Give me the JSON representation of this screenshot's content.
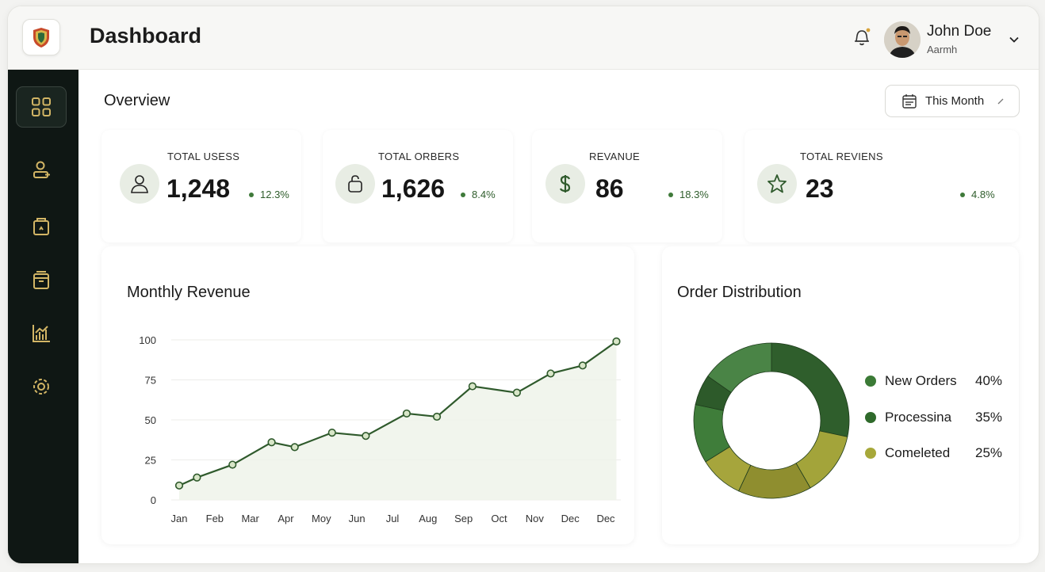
{
  "header": {
    "title": "Dashboard",
    "user_name": "John Doe",
    "user_sub": "Aarmh"
  },
  "sidebar": {
    "items": [
      {
        "icon": "grid-icon",
        "active": true
      },
      {
        "icon": "user-icon",
        "active": false
      },
      {
        "icon": "bag-icon",
        "active": false
      },
      {
        "icon": "archive-icon",
        "active": false
      },
      {
        "icon": "bar-chart-icon",
        "active": false
      },
      {
        "icon": "settings-gear-icon",
        "active": false
      }
    ]
  },
  "overview": {
    "title": "Overview",
    "period_label": "This Month"
  },
  "stats": [
    {
      "label": "TOTAL USESS",
      "value": "1,248",
      "trend": "12.3%",
      "icon": "user-icon"
    },
    {
      "label": "TOTAL ORBERS",
      "value": "1,626",
      "trend": "8.4%",
      "icon": "bag-icon"
    },
    {
      "label": "REVANUE",
      "value": "86",
      "trend": "18.3%",
      "icon": "dollar-icon"
    },
    {
      "label": "TOTAL REVIENS",
      "value": "23",
      "trend": "4.8%",
      "icon": "star-icon"
    }
  ],
  "colors": {
    "accent": "#2f5a2c",
    "sidebar_bg": "#0f1714",
    "sidebar_icon": "#d2b565",
    "new_orders": "#3b7a36",
    "processing": "#2f6a2b",
    "completed": "#a7a83a"
  },
  "chart_data": [
    {
      "type": "line",
      "title": "Monthly Revenue",
      "categories": [
        "Jan",
        "Feb",
        "Mar",
        "Apr",
        "Moy",
        "Jun",
        "Jul",
        "Aug",
        "Sep",
        "Oct",
        "Nov",
        "Dec",
        "Dec"
      ],
      "y_ticks": [
        "100",
        "75",
        "50",
        "25",
        "0"
      ],
      "ylim": [
        0,
        100
      ],
      "x_index_range": [
        0,
        12
      ],
      "points": [
        {
          "x": 0.0,
          "y": 9
        },
        {
          "x": 0.5,
          "y": 14
        },
        {
          "x": 1.5,
          "y": 22
        },
        {
          "x": 2.6,
          "y": 36
        },
        {
          "x": 3.25,
          "y": 33
        },
        {
          "x": 4.3,
          "y": 42
        },
        {
          "x": 5.25,
          "y": 40
        },
        {
          "x": 6.4,
          "y": 54
        },
        {
          "x": 7.25,
          "y": 52
        },
        {
          "x": 8.25,
          "y": 71
        },
        {
          "x": 9.5,
          "y": 67
        },
        {
          "x": 10.45,
          "y": 79
        },
        {
          "x": 11.35,
          "y": 84
        },
        {
          "x": 12.3,
          "y": 99
        }
      ],
      "grid": true
    },
    {
      "type": "pie",
      "title": "Order Distribution",
      "labels": [
        "New Orders",
        "Processina",
        "Comeleted"
      ],
      "display_percents": [
        "40%",
        "35%",
        "25%"
      ],
      "donut": true,
      "legend": "right"
    }
  ]
}
